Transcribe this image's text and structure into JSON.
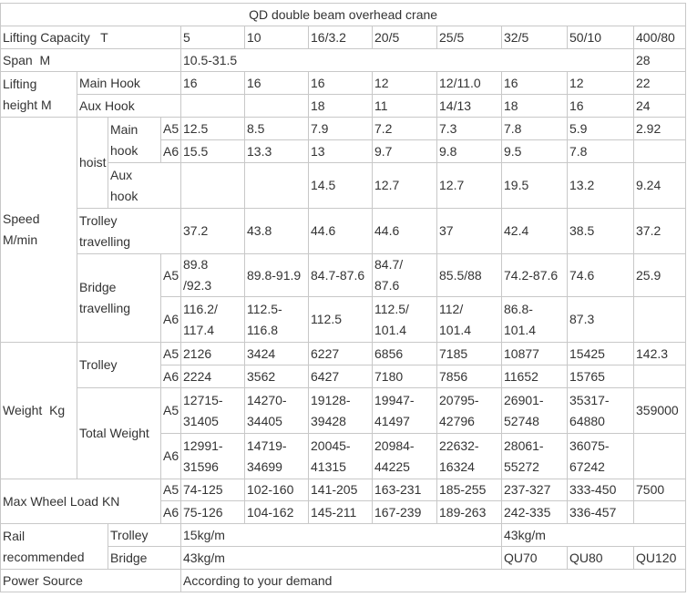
{
  "title": "QD double beam overhead crane",
  "rows": [
    [
      "Lifting Capacity   T",
      "5",
      "10",
      "16/3.2",
      "20/5",
      "25/5",
      "32/5",
      "50/10",
      "400/80"
    ],
    [
      "Span  M",
      "10.5-31.5",
      "28"
    ],
    [
      "Lifting\nheight M",
      "Main Hook",
      "16",
      "16",
      "16",
      "12",
      "12/11.0",
      "16",
      "12",
      "22"
    ],
    [
      "Aux Hook",
      "18",
      "11",
      "14/13",
      "18",
      "16",
      "24"
    ],
    [
      "Speed\nM/min",
      "hoist",
      "Main\nhook",
      "A5",
      "12.5",
      "8.5",
      "7.9",
      "7.2",
      "7.3",
      "7.8",
      "5.9",
      "2.92"
    ],
    [
      "A6",
      "15.5",
      "13.3",
      "13",
      "9.7",
      "9.8",
      "9.5",
      "7.8"
    ],
    [
      "Aux\nhook",
      "14.5",
      "12.7",
      "12.7",
      "19.5",
      "13.2",
      "9.24"
    ],
    [
      "Trolley\ntravelling",
      "37.2",
      "43.8",
      "44.6",
      "44.6",
      "37",
      "42.4",
      "38.5",
      "37.2"
    ],
    [
      "Bridge\ntravelling",
      "A5",
      "89.8\n/92.3",
      "89.8-91.9",
      "84.7-87.6",
      "84.7/\n87.6",
      "85.5/88",
      "74.2-87.6",
      "74.6",
      "25.9"
    ],
    [
      "A6",
      "116.2/\n117.4",
      "112.5-\n116.8",
      "112.5",
      "112.5/\n101.4",
      "112/\n101.4",
      "86.8-\n101.4",
      "87.3"
    ],
    [
      "Weight  Kg",
      "Trolley",
      "A5",
      "2126",
      "3424",
      "6227",
      "6856",
      "7185",
      "10877",
      "15425",
      "142.3"
    ],
    [
      "A6",
      "2224",
      "3562",
      "6427",
      "7180",
      "7856",
      "11652",
      "15765"
    ],
    [
      "Total Weight",
      "A5",
      "12715-\n31405",
      "14270-\n34405",
      "19128-\n39428",
      "19947-\n41497",
      "20795-\n42796",
      "26901-\n52748",
      "35317-\n64880",
      "359000"
    ],
    [
      "A6",
      "12991-\n31596",
      "14719-\n34699",
      "20045-\n41315",
      "20984-\n44225",
      "22632-\n16324",
      "28061-\n55272",
      "36075-\n67242"
    ],
    [
      "Max Wheel Load KN",
      "A5",
      "74-125",
      "102-160",
      "141-205",
      "163-231",
      "185-255",
      "237-327",
      "333-450",
      "7500"
    ],
    [
      "A6",
      "75-126",
      "104-162",
      "145-211",
      "167-239",
      "189-263",
      "242-335",
      "336-457"
    ],
    [
      "Rail\nrecommended",
      "Trolley",
      "15kg/m",
      "43kg/m"
    ],
    [
      "Bridge",
      "43kg/m",
      "QU70",
      "QU80",
      "QU120"
    ],
    [
      "Power Source",
      "According to your demand"
    ]
  ]
}
